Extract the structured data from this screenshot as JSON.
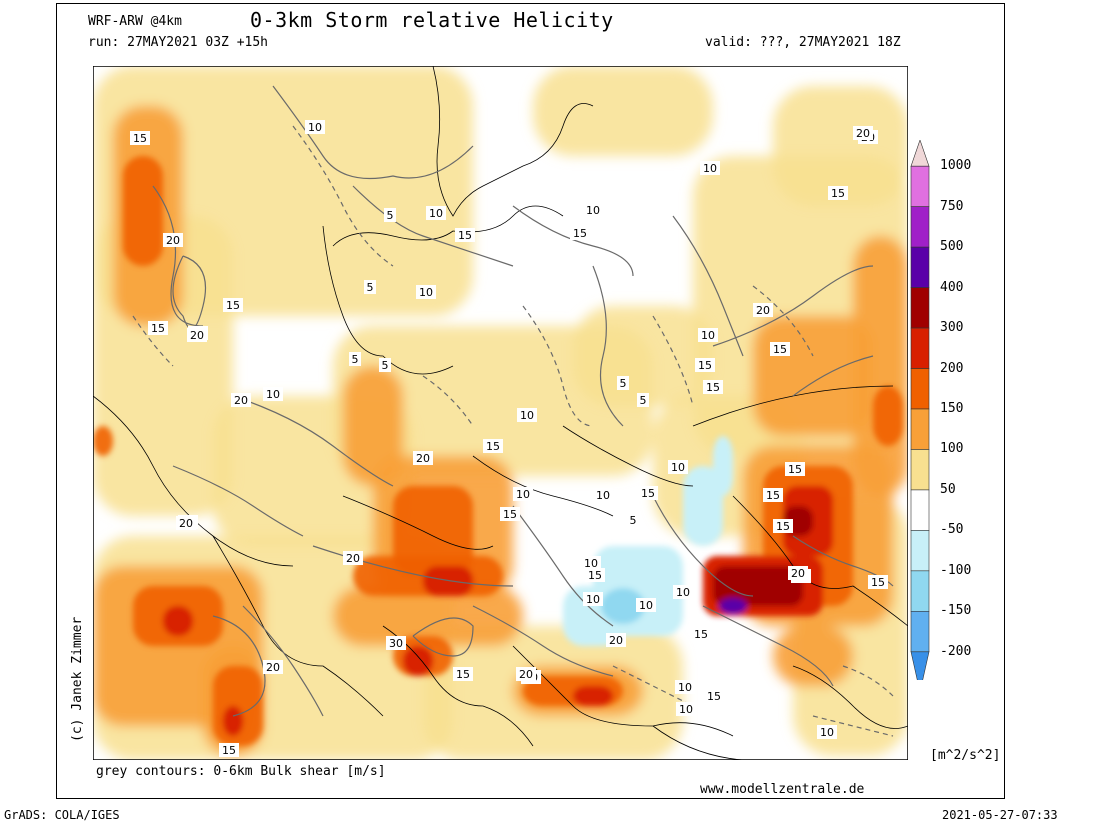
{
  "header": {
    "model": "WRF-ARW @4km",
    "title": "0-3km Storm relative Helicity",
    "run": "run: 27MAY2021 03Z +15h",
    "valid": "valid: ???, 27MAY2021 18Z"
  },
  "footer": {
    "contours_note": "grey contours: 0-6km Bulk shear [m/s]",
    "website": "www.modellzentrale.de",
    "software": "GrADS: COLA/IGES",
    "timestamp": "2021-05-27-07:33",
    "units": "[m^2/s^2]"
  },
  "copyright": "(c) Janek Zimmer",
  "colorbar": {
    "labels": [
      "1000",
      "750",
      "500",
      "400",
      "300",
      "200",
      "150",
      "100",
      "50",
      "-50",
      "-100",
      "-150",
      "-200"
    ],
    "colors": [
      "#f0d8d8",
      "#e070e0",
      "#a020c8",
      "#5a00a8",
      "#a00000",
      "#d82000",
      "#f06000",
      "#f8a038",
      "#f8e090",
      "#ffffff",
      "#c8f0f8",
      "#90d8f0",
      "#60b0f0",
      "#3890e8"
    ]
  },
  "map": {
    "contour_labels": [
      "15",
      "20",
      "15",
      "20",
      "10",
      "5",
      "10",
      "5",
      "5",
      "10",
      "15",
      "10",
      "15",
      "10",
      "20",
      "15",
      "20",
      "10",
      "15",
      "15",
      "10",
      "5",
      "5",
      "15",
      "20",
      "15",
      "20",
      "10",
      "20",
      "20",
      "15",
      "20",
      "15",
      "10",
      "20",
      "10",
      "15",
      "30",
      "20",
      "15",
      "15",
      "20",
      "15",
      "10",
      "15",
      "10",
      "10",
      "20",
      "20",
      "15",
      "10",
      "10",
      "15",
      "15",
      "10",
      "10",
      "5",
      "5",
      "15",
      "15",
      "20",
      "20",
      "10",
      "20"
    ]
  }
}
